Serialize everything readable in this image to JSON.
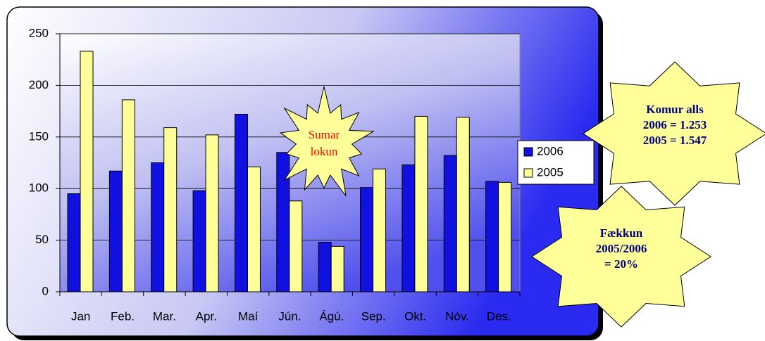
{
  "chart_data": {
    "type": "bar",
    "categories": [
      "Jan",
      "Feb.",
      "Mar.",
      "Apr.",
      "Maí",
      "Jún.",
      "Ágú.",
      "Sep.",
      "Okt.",
      "Nóv.",
      "Des."
    ],
    "series": [
      {
        "name": "2006",
        "color": "#1010e0",
        "values": [
          95,
          117,
          125,
          98,
          172,
          135,
          48,
          101,
          123,
          132,
          107
        ]
      },
      {
        "name": "2005",
        "color": "#ffff99",
        "values": [
          233,
          186,
          159,
          152,
          121,
          88,
          44,
          119,
          170,
          169,
          106
        ]
      }
    ],
    "ylim": [
      0,
      250
    ],
    "yticks": [
      0,
      50,
      100,
      150,
      200,
      250
    ],
    "grid": true,
    "legend": "right",
    "annotations": [
      {
        "lines": [
          "Sumar",
          "lokun"
        ],
        "color": "#ff0000"
      },
      {
        "lines": [
          "Komur alls",
          "2006 = 1.253",
          "2005 = 1.547"
        ],
        "color": "#000080"
      },
      {
        "lines": [
          "Fækkun",
          "2005/2006",
          "= 20%"
        ],
        "color": "#000080"
      }
    ]
  }
}
